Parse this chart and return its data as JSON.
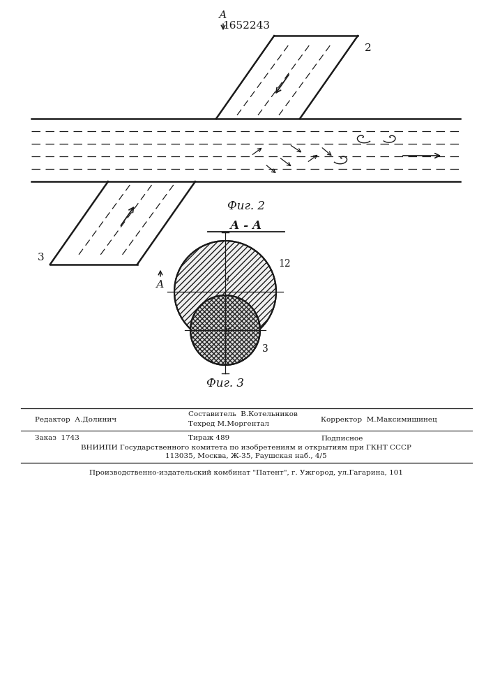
{
  "patent_number": "1652243",
  "fig2_label": "Фиг. 2",
  "fig3_label": "Фиг. 3",
  "aa_label": "А - А",
  "label2": "2",
  "label3": "3",
  "label_A_top": "А",
  "label_A_bottom": "А",
  "footer_line1_left": "Редактор  А.Долинич",
  "footer_line1_mid": "Составитель  В.Котельников",
  "footer_line2_mid": "Техред М.Моргентал",
  "footer_line1_right": "Корректор  М.Максимишинец",
  "footer_line3_left": "Заказ  1743",
  "footer_line3_mid": "Тираж 489",
  "footer_line3_right": "Подписное",
  "footer_line4": "ВНИИПИ Государственного комитета по изобретениям и открытиям при ГКНТ СССР",
  "footer_line5": "113035, Москва, Ж-35, Раушская наб., 4/5",
  "footer_line6": "Производственно-издательский комбинат \"Патент\", г. Ужгород, ул.Гагарина, 101",
  "bg_color": "#ffffff",
  "line_color": "#1a1a1a"
}
